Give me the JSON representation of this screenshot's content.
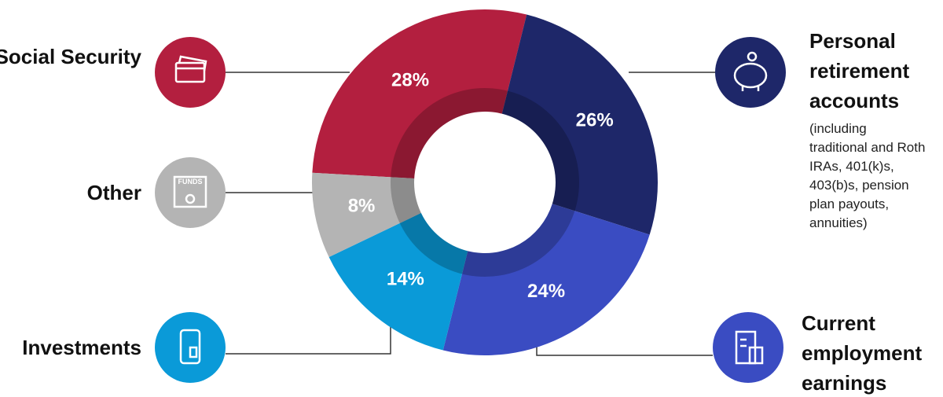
{
  "chart_data": {
    "type": "pie",
    "categories": [
      "Social Security",
      "Personal retirement accounts",
      "Current employment earnings",
      "Investments",
      "Other"
    ],
    "values": [
      28,
      26,
      24,
      14,
      8
    ],
    "value_labels": [
      "28%",
      "26%",
      "24%",
      "14%",
      "8%"
    ],
    "colors": [
      "#b31f3f",
      "#1e2769",
      "#3a4cc2",
      "#0a9ad8",
      "#b4b4b4"
    ],
    "note": "(including traditional and Roth IRAs, 401(k)s, 403(b)s, pension plan payouts, annuities)",
    "icon_label": "FUNDS"
  }
}
